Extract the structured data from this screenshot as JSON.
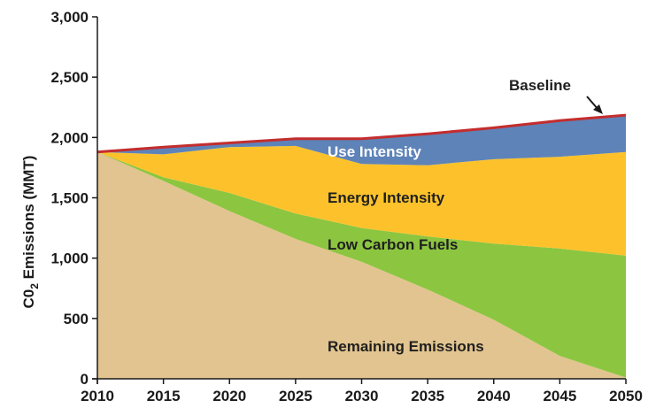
{
  "chart_data": {
    "type": "area",
    "title": "",
    "xlabel": "",
    "ylabel": "C0",
    "ylabel_sub": "2",
    "ylabel_rest": " Emissions (MMT)",
    "x": [
      2010,
      2015,
      2020,
      2025,
      2030,
      2035,
      2040,
      2045,
      2050
    ],
    "xlim": [
      2010,
      2050
    ],
    "ylim": [
      0,
      3000
    ],
    "x_tick_labels": [
      "2010",
      "2015",
      "2020",
      "2025",
      "2030",
      "2035",
      "2040",
      "2045",
      "2050"
    ],
    "y_tick_labels": [
      "0",
      "500",
      "1,000",
      "1,500",
      "2,000",
      "2,500",
      "3,000"
    ],
    "y_tick_values": [
      0,
      500,
      1000,
      1500,
      2000,
      2500,
      3000
    ],
    "grid": false,
    "legend": "none",
    "series": [
      {
        "name": "Remaining Emissions",
        "color": "#e1c48f",
        "values": [
          1880,
          1640,
          1390,
          1160,
          970,
          740,
          490,
          190,
          10
        ]
      },
      {
        "name": "Low Carbon Fuels",
        "color": "#8cc540",
        "values": [
          0,
          30,
          150,
          210,
          280,
          440,
          630,
          890,
          1010
        ]
      },
      {
        "name": "Energy Intensity",
        "color": "#fdc22b",
        "values": [
          0,
          190,
          380,
          560,
          530,
          590,
          700,
          760,
          860
        ]
      },
      {
        "name": "Use Intensity",
        "color": "#5e83b8",
        "values": [
          0,
          60,
          35,
          60,
          210,
          260,
          260,
          300,
          305
        ]
      }
    ],
    "baseline": {
      "name": "Baseline",
      "color": "#c42d2d",
      "values": [
        1880,
        1920,
        1955,
        1990,
        1990,
        2030,
        2080,
        2140,
        2185
      ]
    },
    "annotations": [
      {
        "text": "Use Intensity",
        "color": "#ffffff"
      },
      {
        "text": "Energy Intensity",
        "color": "#1f1f1f"
      },
      {
        "text": "Low Carbon Fuels",
        "color": "#1f1f1f"
      },
      {
        "text": "Remaining Emissions",
        "color": "#1f1f1f"
      },
      {
        "text": "Baseline",
        "color": "#1f1f1f"
      }
    ]
  }
}
